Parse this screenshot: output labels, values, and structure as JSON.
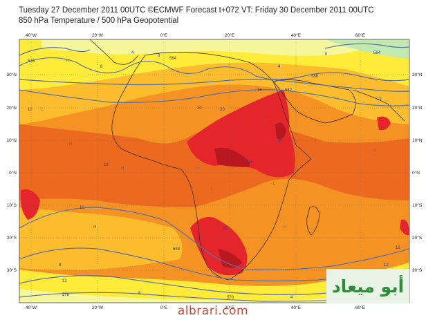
{
  "header": {
    "title_line1": "Tuesday 27 December 2011 00UTC ©ECMWF Forecast t+072 VT: Friday 30 December 2011 00UTC",
    "title_line2": "850 hPa Temperature / 500 hPa Geopotential"
  },
  "map": {
    "lon_labels": [
      "40°W",
      "20°W",
      "0°E",
      "20°E",
      "40°E",
      "60°E"
    ],
    "lat_labels": [
      "30°N",
      "20°N",
      "10°N",
      "0°N",
      "10°S",
      "20°S",
      "30°S"
    ],
    "contour_labels": [
      "576",
      "564",
      "588",
      "582",
      "570",
      "576",
      "588",
      "564"
    ],
    "isotherm_labels": [
      "12",
      "16",
      "20",
      "24",
      "20",
      "16",
      "12",
      "8",
      "4",
      "0",
      "4",
      "8",
      "12",
      "16",
      "24",
      "20",
      "16",
      "12",
      "8",
      "4",
      "0"
    ],
    "pressure_labels": [
      "H",
      "L",
      "H",
      "L",
      "H",
      "H",
      "L",
      "H",
      "L",
      "H",
      "L",
      "H",
      "H",
      "L"
    ],
    "colors": {
      "pale_yellow": "#f6f69a",
      "yellow": "#ffeb3a",
      "light_orange": "#fbbd2e",
      "orange": "#f49324",
      "dark_orange": "#ec6a1f",
      "red": "#e4252b",
      "dark_red": "#b81820",
      "pale_green": "#c2eab0",
      "contour_line": "#5a6fa5",
      "coast_line": "#3a2a2a"
    }
  },
  "watermark": {
    "logo_text": "أبو ميعاد",
    "site_text": "albrari.com"
  }
}
